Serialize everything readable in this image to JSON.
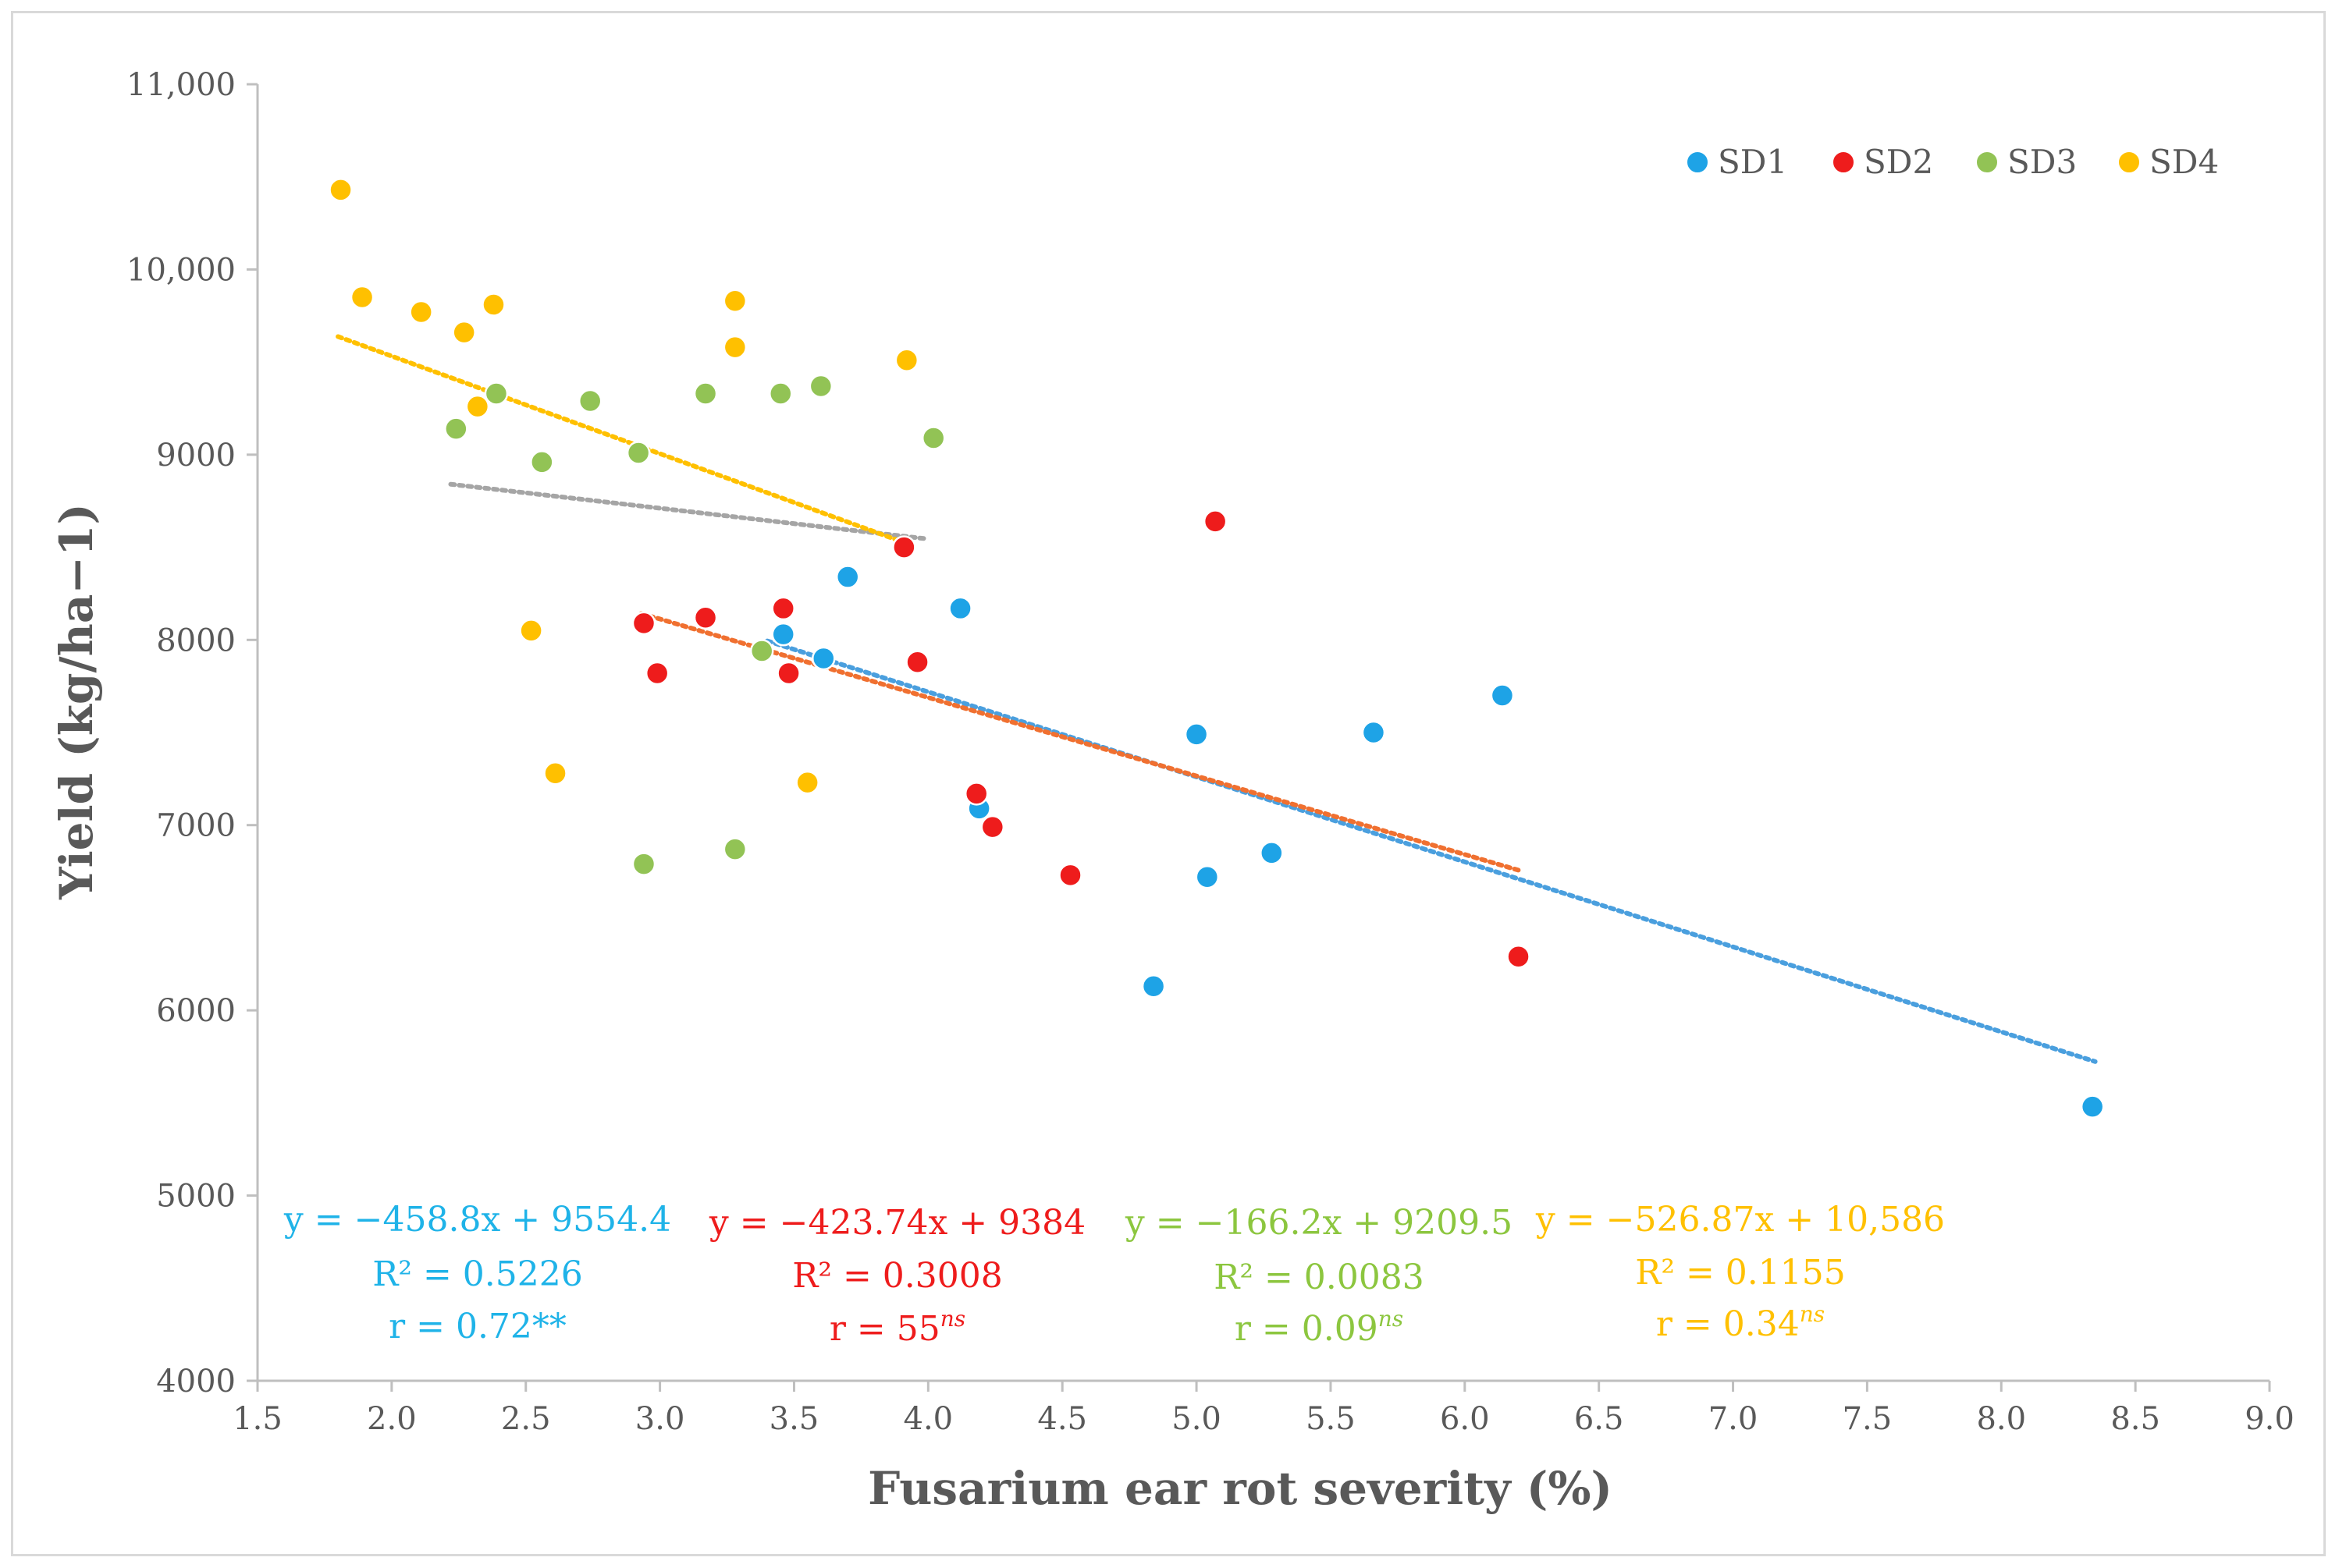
{
  "chart_data": {
    "type": "scatter",
    "title": "",
    "xlabel": "Fusarium ear rot severity (%)",
    "ylabel": "Yield (kg/ha−1)",
    "xlim": [
      1.5,
      9.0
    ],
    "ylim": [
      4000,
      11000
    ],
    "x_ticks": [
      "1.5",
      "2.0",
      "2.5",
      "3.0",
      "3.5",
      "4.0",
      "4.5",
      "5.0",
      "5.5",
      "6.0",
      "6.5",
      "7.0",
      "7.5",
      "8.0",
      "8.5",
      "9.0"
    ],
    "y_ticks": [
      "4000",
      "5000",
      "6000",
      "7000",
      "8000",
      "9000",
      "10,000",
      "11,000"
    ],
    "legend_position": "top-right",
    "series": [
      {
        "name": "SD1",
        "color": "#1ea3e6",
        "points": [
          [
            3.46,
            8030
          ],
          [
            3.61,
            7900
          ],
          [
            3.7,
            8340
          ],
          [
            4.12,
            8170
          ],
          [
            4.19,
            7090
          ],
          [
            4.84,
            6130
          ],
          [
            5.0,
            7490
          ],
          [
            5.04,
            6720
          ],
          [
            5.28,
            6850
          ],
          [
            5.66,
            7500
          ],
          [
            6.14,
            7700
          ],
          [
            8.34,
            5480
          ]
        ],
        "trend": {
          "x_range": [
            3.4,
            8.35
          ],
          "slope": -458.8,
          "intercept": 9554.4,
          "color": "#4a9fde"
        },
        "equation": "y = −458.8x + 9554.4",
        "r2": "R² = 0.5226",
        "r": "r = 0.72**",
        "r_sup": ""
      },
      {
        "name": "SD2",
        "color": "#ee1c1c",
        "points": [
          [
            2.94,
            8090
          ],
          [
            2.99,
            7820
          ],
          [
            3.17,
            8120
          ],
          [
            3.46,
            8170
          ],
          [
            3.48,
            7820
          ],
          [
            3.91,
            8500
          ],
          [
            3.96,
            7880
          ],
          [
            4.18,
            7170
          ],
          [
            4.24,
            6990
          ],
          [
            4.53,
            6730
          ],
          [
            5.07,
            8640
          ],
          [
            6.2,
            6290
          ]
        ],
        "trend": {
          "x_range": [
            2.93,
            6.2
          ],
          "slope": -423.74,
          "intercept": 9384,
          "color": "#f07030"
        },
        "equation": "y = −423.74x + 9384",
        "r2": "R² = 0.3008",
        "r": "r = 55",
        "r_sup": "ns"
      },
      {
        "name": "SD3",
        "color": "#92c355",
        "points": [
          [
            2.24,
            9140
          ],
          [
            2.39,
            9330
          ],
          [
            2.56,
            8960
          ],
          [
            2.74,
            9290
          ],
          [
            2.92,
            9010
          ],
          [
            2.94,
            6790
          ],
          [
            3.17,
            9330
          ],
          [
            3.28,
            6870
          ],
          [
            3.38,
            7940
          ],
          [
            3.45,
            9330
          ],
          [
            3.6,
            9370
          ],
          [
            4.02,
            9090
          ]
        ],
        "trend": {
          "x_range": [
            2.22,
            4.0
          ],
          "slope": -166.2,
          "intercept": 9209.5,
          "color": "#a5a5a5"
        },
        "equation": "y = −166.2x + 9209.5",
        "r2": "R² = 0.0083",
        "r": "r = 0.09",
        "r_sup": "ns"
      },
      {
        "name": "SD4",
        "color": "#ffc000",
        "points": [
          [
            1.81,
            10430
          ],
          [
            1.89,
            9850
          ],
          [
            2.11,
            9770
          ],
          [
            2.27,
            9660
          ],
          [
            2.32,
            9260
          ],
          [
            2.38,
            9810
          ],
          [
            2.52,
            8050
          ],
          [
            2.61,
            7280
          ],
          [
            3.28,
            9830
          ],
          [
            3.28,
            9580
          ],
          [
            3.55,
            7230
          ],
          [
            3.92,
            9510
          ]
        ],
        "trend": {
          "x_range": [
            1.8,
            3.9
          ],
          "slope": -526.87,
          "intercept": 10586,
          "color": "#ffc000"
        },
        "equation": "y = −526.87x + 10,586",
        "r2": "R² = 0.1155",
        "r": "r = 0.34",
        "r_sup": "ns"
      }
    ],
    "annotation_colors": [
      "#1fb3e8",
      "#ee1c1c",
      "#8cc63f",
      "#ffc000"
    ]
  }
}
